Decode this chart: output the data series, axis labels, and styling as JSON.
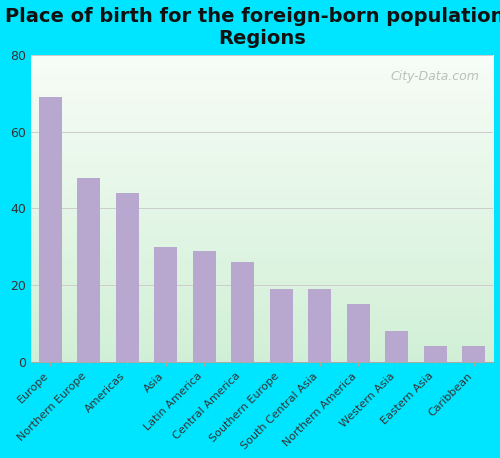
{
  "title": "Place of birth for the foreign-born population -\nRegions",
  "categories": [
    "Europe",
    "Northern Europe",
    "Americas",
    "Asia",
    "Latin America",
    "Central America",
    "Southern Europe",
    "South Central Asia",
    "Northern America",
    "Western Asia",
    "Eastern Asia",
    "Caribbean"
  ],
  "values": [
    69,
    48,
    44,
    30,
    29,
    26,
    19,
    19,
    15,
    8,
    4,
    4
  ],
  "bar_color": "#b8a8d0",
  "ylim": [
    0,
    80
  ],
  "yticks": [
    0,
    20,
    40,
    60,
    80
  ],
  "background_outer": "#00e5ff",
  "title_fontsize": 14,
  "watermark": "City-Data.com"
}
